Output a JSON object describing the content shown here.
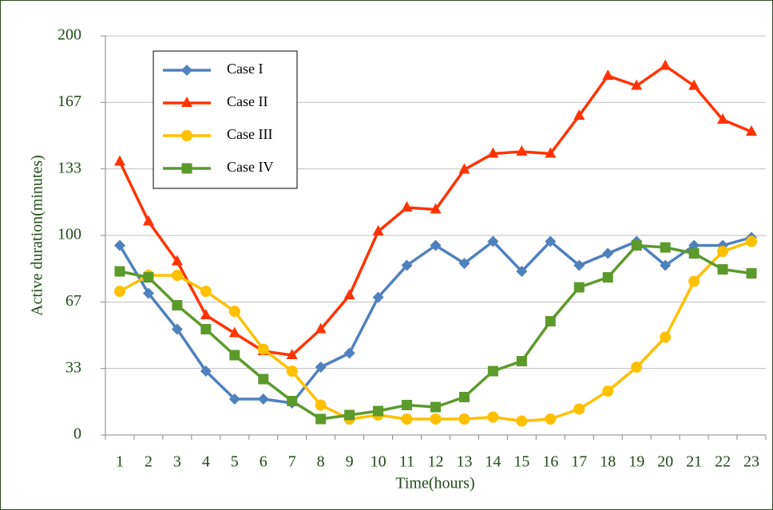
{
  "chart_data": {
    "type": "line",
    "xlabel": "Time(hours)",
    "ylabel": "Active duration(minutes)",
    "categories": [
      "1",
      "2",
      "3",
      "4",
      "5",
      "6",
      "7",
      "8",
      "9",
      "10",
      "11",
      "12",
      "13",
      "14",
      "15",
      "16",
      "17",
      "18",
      "19",
      "20",
      "21",
      "22",
      "23"
    ],
    "series": [
      {
        "name": "Case I",
        "color": "#4f81bd",
        "marker": "diamond",
        "values": [
          95,
          71,
          53,
          32,
          18,
          18,
          16,
          34,
          41,
          69,
          85,
          95,
          86,
          97,
          82,
          97,
          85,
          91,
          97,
          85,
          95,
          95,
          99
        ]
      },
      {
        "name": "Case II",
        "color": "#ff3300",
        "marker": "triangle",
        "values": [
          137,
          107,
          87,
          60,
          51,
          42,
          40,
          53,
          70,
          102,
          114,
          113,
          133,
          141,
          142,
          141,
          160,
          180,
          175,
          185,
          175,
          158,
          152
        ]
      },
      {
        "name": "Case III",
        "color": "#ffc000",
        "marker": "circle",
        "values": [
          72,
          80,
          80,
          72,
          62,
          43,
          32,
          15,
          8,
          10,
          8,
          8,
          8,
          9,
          7,
          8,
          13,
          22,
          34,
          49,
          77,
          92,
          97
        ]
      },
      {
        "name": "Case IV",
        "color": "#5b9a2b",
        "marker": "square",
        "values": [
          82,
          79,
          65,
          53,
          40,
          28,
          17,
          8,
          10,
          12,
          15,
          14,
          19,
          32,
          37,
          57,
          74,
          79,
          95,
          94,
          91,
          83,
          81
        ]
      }
    ],
    "ylim": [
      0,
      200
    ],
    "yticks": [
      0,
      {
        "value": 33.333,
        "label": "33"
      },
      {
        "value": 66.667,
        "label": "67"
      },
      100,
      {
        "value": 133.333,
        "label": "133"
      },
      {
        "value": 166.667,
        "label": "167"
      },
      200
    ],
    "grid": true,
    "legend": "upper left"
  }
}
